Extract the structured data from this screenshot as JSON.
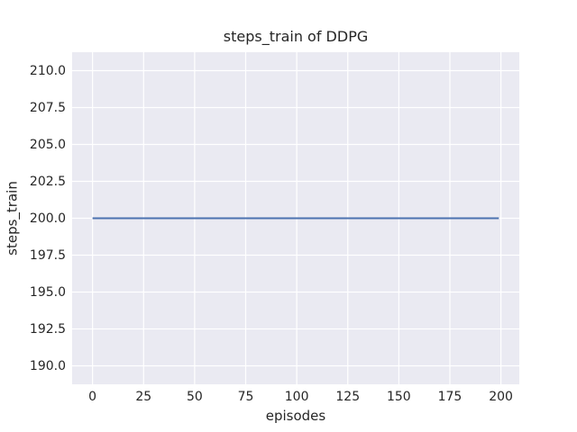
{
  "chart_data": {
    "type": "line",
    "title": "steps_train of DDPG",
    "xlabel": "episodes",
    "ylabel": "steps_train",
    "x_range": [
      -10,
      209
    ],
    "y_range": [
      188.75,
      211.25
    ],
    "grid": true,
    "legend": "none",
    "xticks": {
      "values": [
        0,
        25,
        50,
        75,
        100,
        125,
        150,
        175,
        200
      ],
      "labels": [
        "0",
        "25",
        "50",
        "75",
        "100",
        "125",
        "150",
        "175",
        "200"
      ]
    },
    "yticks": {
      "values": [
        190.0,
        192.5,
        195.0,
        197.5,
        200.0,
        202.5,
        205.0,
        207.5,
        210.0
      ],
      "labels": [
        "190.0",
        "192.5",
        "195.0",
        "197.5",
        "200.0",
        "202.5",
        "205.0",
        "207.5",
        "210.0"
      ]
    },
    "series": [
      {
        "name": "steps_train",
        "color": "#4c72b0",
        "x": [
          0,
          199
        ],
        "y": [
          200,
          200
        ]
      }
    ],
    "style": {
      "figure_background": "#ffffff",
      "plot_background": "#eaeaf2",
      "grid_color": "#ffffff",
      "text_color": "#262626",
      "line_width": 2
    }
  }
}
